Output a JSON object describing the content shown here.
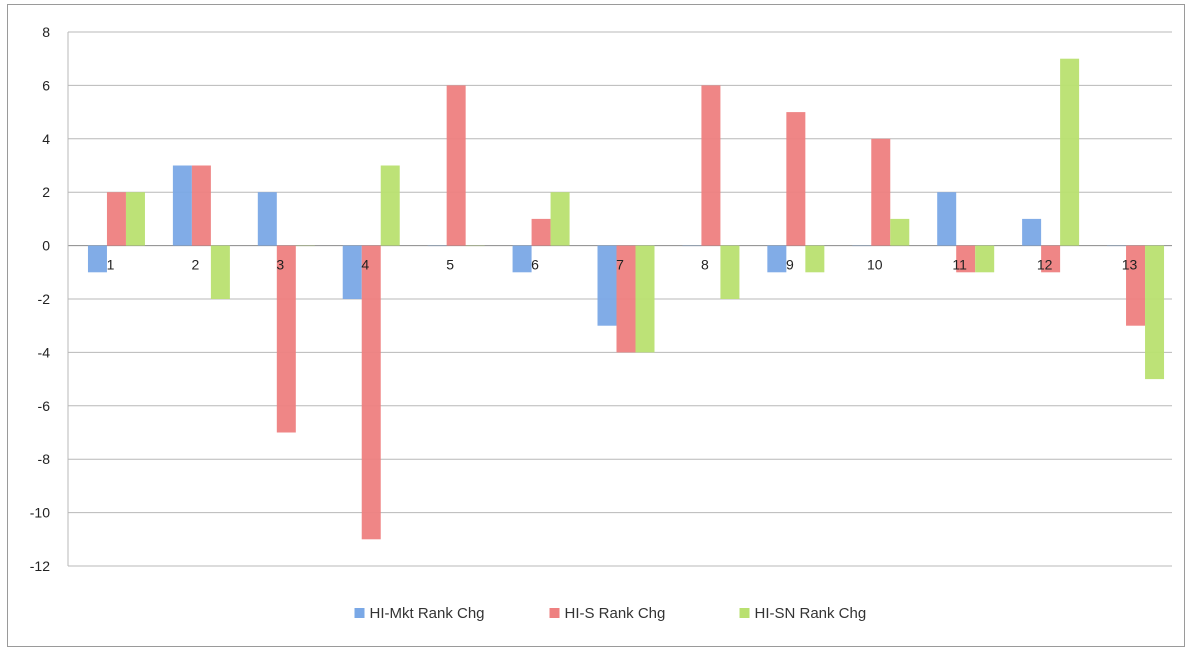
{
  "chart_data": {
    "type": "bar",
    "categories": [
      "1",
      "2",
      "3",
      "4",
      "5",
      "6",
      "7",
      "8",
      "9",
      "10",
      "11",
      "12",
      "13"
    ],
    "series": [
      {
        "name": "HI-Mkt Rank Chg",
        "color": "#7aa8e6",
        "values": [
          -1,
          3,
          2,
          -2,
          0,
          -1,
          -3,
          0,
          -1,
          0,
          2,
          1,
          0
        ]
      },
      {
        "name": "HI-S Rank Chg",
        "color": "#ee8080",
        "values": [
          2,
          3,
          -7,
          -11,
          6,
          1,
          -4,
          6,
          5,
          4,
          -1,
          -1,
          -3
        ]
      },
      {
        "name": "HI-SN Rank Chg",
        "color": "#b9e070",
        "values": [
          2,
          -2,
          0,
          3,
          0,
          2,
          -4,
          -2,
          -1,
          1,
          -1,
          7,
          -5
        ]
      }
    ],
    "ylim": [
      -12,
      8
    ],
    "yticks": [
      8,
      6,
      4,
      2,
      0,
      -2,
      -4,
      -6,
      -8,
      -10,
      -12
    ],
    "grid": true,
    "legend_position": "bottom"
  }
}
